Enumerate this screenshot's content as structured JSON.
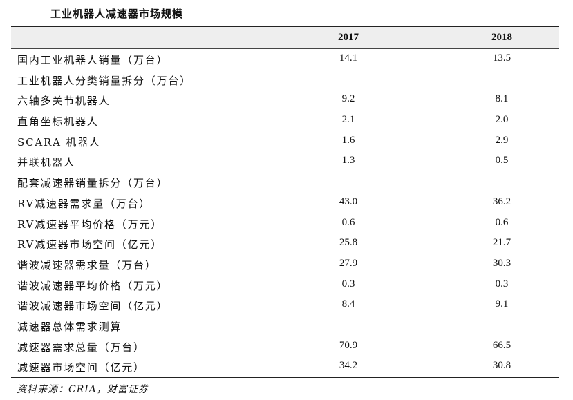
{
  "title": "工业机器人减速器市场规模",
  "table": {
    "headers": {
      "label": "",
      "y2017": "2017",
      "y2018": "2018"
    },
    "rows": [
      {
        "label": "国内工业机器人销量（万台）",
        "y2017": "14.1",
        "y2018": "13.5"
      },
      {
        "label": "工业机器人分类销量拆分（万台）",
        "y2017": "",
        "y2018": ""
      },
      {
        "label": "六轴多关节机器人",
        "y2017": "9.2",
        "y2018": "8.1"
      },
      {
        "label": "直角坐标机器人",
        "y2017": "2.1",
        "y2018": "2.0"
      },
      {
        "label": "SCARA 机器人",
        "y2017": "1.6",
        "y2018": "2.9"
      },
      {
        "label": "并联机器人",
        "y2017": "1.3",
        "y2018": "0.5"
      },
      {
        "label": "配套减速器销量拆分（万台）",
        "y2017": "",
        "y2018": ""
      },
      {
        "label": "RV减速器需求量（万台）",
        "y2017": "43.0",
        "y2018": "36.2"
      },
      {
        "label": "RV减速器平均价格（万元）",
        "y2017": "0.6",
        "y2018": "0.6"
      },
      {
        "label": "RV减速器市场空间（亿元）",
        "y2017": "25.8",
        "y2018": "21.7"
      },
      {
        "label": "谐波减速器需求量（万台）",
        "y2017": "27.9",
        "y2018": "30.3"
      },
      {
        "label": "谐波减速器平均价格（万元）",
        "y2017": "0.3",
        "y2018": "0.3"
      },
      {
        "label": "谐波减速器市场空间（亿元）",
        "y2017": "8.4",
        "y2018": "9.1"
      },
      {
        "label": "减速器总体需求测算",
        "y2017": "",
        "y2018": ""
      },
      {
        "label": "减速器需求总量（万台）",
        "y2017": "70.9",
        "y2018": "66.5"
      },
      {
        "label": "减速器市场空间（亿元）",
        "y2017": "34.2",
        "y2018": "30.8"
      }
    ]
  },
  "source": "资料来源：CRIA，财富证券"
}
